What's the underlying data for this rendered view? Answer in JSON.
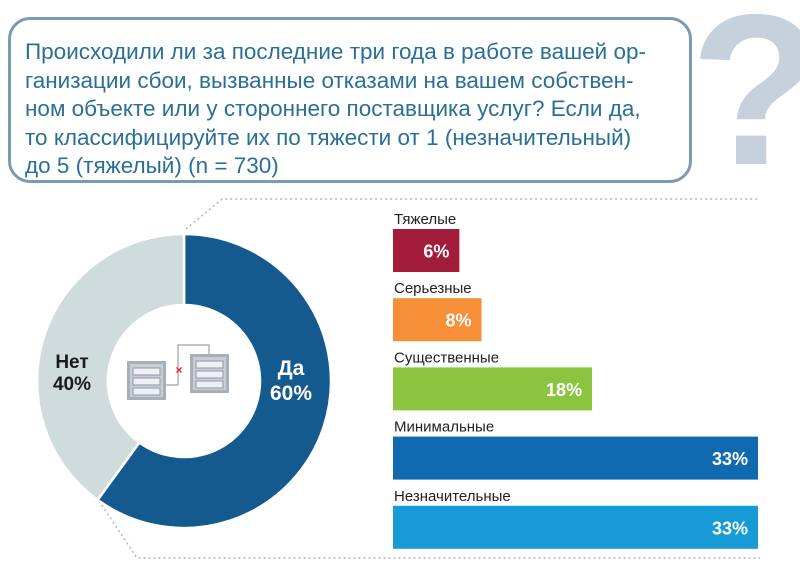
{
  "question": {
    "lines": [
      "Происходили ли за последние три года в работе вашей ор-",
      "ганизации сбои, вызванные отказами на вашем собствен-",
      "ном объекте или у стороннего поставщика услуг? Если да,",
      "то классифицируйте их по тяжести от 1 (незначительный)",
      "до 5 (тяжелый) (n = 730)"
    ],
    "icon": "question-mark-icon",
    "question_mark": "?"
  },
  "center_icon": "servers-connection-failure-icon",
  "chart_data": [
    {
      "type": "pie",
      "variant": "donut",
      "slices": [
        {
          "name": "Да",
          "value": 60,
          "label": "60%",
          "color": "#155a8e"
        },
        {
          "name": "Нет",
          "value": 40,
          "label": "40%",
          "color": "#d0dcdc"
        }
      ]
    },
    {
      "type": "bar",
      "orientation": "horizontal",
      "categories": [
        "Тяжелые",
        "Серьезные",
        "Существенные",
        "Минимальные",
        "Незначительные"
      ],
      "values": [
        6,
        8,
        18,
        33,
        33
      ],
      "labels": [
        "6%",
        "8%",
        "18%",
        "33%",
        "33%"
      ],
      "colors": [
        "#a31c3a",
        "#f68f37",
        "#8bc53f",
        "#0f6aaf",
        "#179ad6"
      ],
      "unit": "%"
    }
  ]
}
